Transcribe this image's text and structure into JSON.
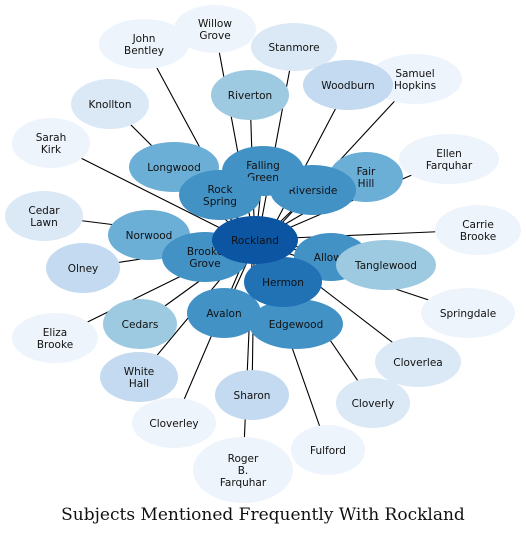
{
  "title": "Subjects Mentioned Frequently With Rockland",
  "colors": {
    "level1": "#eef4fb",
    "level2": "#dbe8f5",
    "level3": "#c4daf0",
    "level4": "#9ecae1",
    "level5": "#6baed6",
    "level6": "#4292c6",
    "level7": "#2171b5",
    "level8": "#0b55a3",
    "edge": "#000000"
  },
  "center": "rockland",
  "nodes": [
    {
      "id": "willow_grove",
      "label": "Willow\nGrove",
      "level": 1
    },
    {
      "id": "john_bentley",
      "label": "John\nBentley",
      "level": 1
    },
    {
      "id": "stanmore",
      "label": "Stanmore",
      "level": 2
    },
    {
      "id": "samuel_hopkins",
      "label": "Samuel\nHopkins",
      "level": 1
    },
    {
      "id": "woodburn",
      "label": "Woodburn",
      "level": 3
    },
    {
      "id": "riverton",
      "label": "Riverton",
      "level": 4
    },
    {
      "id": "knollton",
      "label": "Knollton",
      "level": 2
    },
    {
      "id": "sarah_kirk",
      "label": "Sarah\nKirk",
      "level": 1
    },
    {
      "id": "ellen_farquhar",
      "label": "Ellen\nFarquhar",
      "level": 1
    },
    {
      "id": "longwood",
      "label": "Longwood",
      "level": 5
    },
    {
      "id": "fair_hill",
      "label": "Fair\nHill",
      "level": 5
    },
    {
      "id": "cedar_lawn",
      "label": "Cedar\nLawn",
      "level": 2
    },
    {
      "id": "carrie_brooke",
      "label": "Carrie\nBrooke",
      "level": 1
    },
    {
      "id": "norwood",
      "label": "Norwood",
      "level": 5
    },
    {
      "id": "olney",
      "label": "Olney",
      "level": 3
    },
    {
      "id": "allowa",
      "label": "Allowa",
      "level": 6
    },
    {
      "id": "tanglewood",
      "label": "Tanglewood",
      "level": 4
    },
    {
      "id": "springdale",
      "label": "Springdale",
      "level": 1
    },
    {
      "id": "eliza_brooke",
      "label": "Eliza\nBrooke",
      "level": 1
    },
    {
      "id": "cedars",
      "label": "Cedars",
      "level": 4
    },
    {
      "id": "cloverlea",
      "label": "Cloverlea",
      "level": 2
    },
    {
      "id": "white_hall",
      "label": "White\nHall",
      "level": 3
    },
    {
      "id": "cloverly",
      "label": "Cloverly",
      "level": 2
    },
    {
      "id": "cloverley",
      "label": "Cloverley",
      "level": 1
    },
    {
      "id": "sharon",
      "label": "Sharon",
      "level": 3
    },
    {
      "id": "fulford",
      "label": "Fulford",
      "level": 1
    },
    {
      "id": "roger_farquhar",
      "label": "Roger\nB.\nFarquhar",
      "level": 1
    },
    {
      "id": "avalon",
      "label": "Avalon",
      "level": 6
    },
    {
      "id": "edgewood",
      "label": "Edgewood",
      "level": 6
    },
    {
      "id": "riverside",
      "label": "Riverside",
      "level": 6
    },
    {
      "id": "falling_green",
      "label": "Falling\nGreen",
      "level": 6
    },
    {
      "id": "rock_spring",
      "label": "Rock\nSpring",
      "level": 6
    },
    {
      "id": "brooke_grove",
      "label": "Brooke\nGrove",
      "level": 6
    },
    {
      "id": "hermon",
      "label": "Hermon",
      "level": 7
    },
    {
      "id": "rockland",
      "label": "Rockland",
      "level": 8
    }
  ]
}
